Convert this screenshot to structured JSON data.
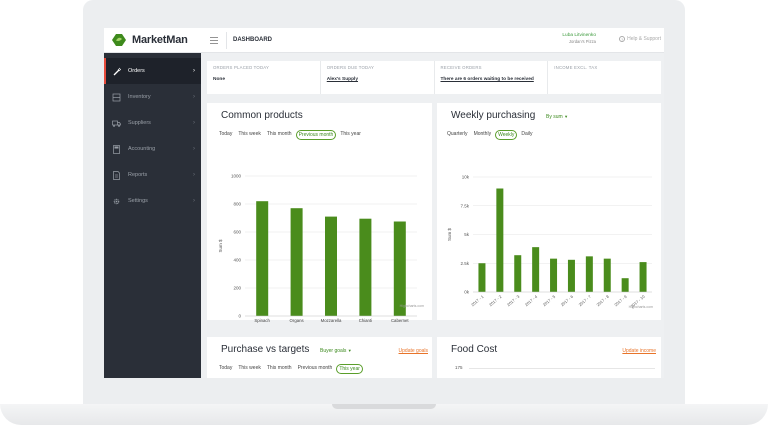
{
  "app": {
    "name": "MarketMan"
  },
  "topbar": {
    "title": "DASHBOARD",
    "user_name": "Luba Litvinenko",
    "restaurant": "Jordan's Pizza",
    "help_label": "Help & Support"
  },
  "sidebar": {
    "items": [
      {
        "label": "Orders",
        "icon": "carrot-icon",
        "active": true
      },
      {
        "label": "Inventory",
        "icon": "inventory-icon",
        "active": false
      },
      {
        "label": "Suppliers",
        "icon": "truck-icon",
        "active": false
      },
      {
        "label": "Accounting",
        "icon": "calculator-icon",
        "active": false
      },
      {
        "label": "Reports",
        "icon": "reports-icon",
        "active": false
      },
      {
        "label": "Settings",
        "icon": "gear-icon",
        "active": false
      }
    ]
  },
  "stats": [
    {
      "header": "ORDERS PLACED TODAY",
      "value": "None"
    },
    {
      "header": "ORDERS DUE TODAY",
      "value": "Alex's Supply"
    },
    {
      "header": "RECEIVE ORDERS",
      "value": "There are 6 orders waiting to be received"
    },
    {
      "header": "INCOME EXCL. TAX",
      "value": ""
    }
  ],
  "common_products": {
    "title": "Common products",
    "tabs": [
      "Today",
      "This week",
      "This month",
      "Previous month",
      "This year"
    ],
    "active_tab": "Previous month",
    "credits": "Highcharts.com"
  },
  "weekly_purchasing": {
    "title": "Weekly purchasing",
    "selector": "By sum",
    "tabs": [
      "Quarterly",
      "Monthly",
      "Weekly",
      "Daily"
    ],
    "active_tab": "Weekly",
    "credits": "Highcharts.com"
  },
  "purchase_targets": {
    "title": "Purchase vs targets",
    "selector": "Buyer goals",
    "update_label": "Update goals",
    "tabs": [
      "Today",
      "This week",
      "This month",
      "Previous month",
      "This year"
    ],
    "active_tab": "This year"
  },
  "food_cost": {
    "title": "Food Cost",
    "update_label": "Update income",
    "first_tick": "175"
  },
  "colors": {
    "accent": "#4a8c1c",
    "sidebar": "#2a2f38",
    "link": "#e8742a",
    "active_marker": "#e74c3c"
  },
  "chart_data": [
    {
      "type": "bar",
      "title": "Common products",
      "categories": [
        "Spinach",
        "Organs Mixed Greens",
        "Mozzarella",
        "Chianti",
        "Cabernet Sauvignon"
      ],
      "values": [
        820,
        770,
        710,
        695,
        675
      ],
      "ylabel": "Sum $",
      "ylim": [
        0,
        1000
      ],
      "yticks": [
        0,
        200,
        400,
        600,
        800,
        1000
      ],
      "grid": true
    },
    {
      "type": "bar",
      "title": "Weekly purchasing",
      "categories": [
        "2017 - 1",
        "2017 - 2",
        "2017 - 3",
        "2017 - 4",
        "2017 - 5",
        "2017 - 6",
        "2017 - 7",
        "2017 - 8",
        "2017 - 9",
        "2017 - 10"
      ],
      "values": [
        2500,
        9000,
        3200,
        3900,
        2900,
        2800,
        3100,
        2900,
        1200,
        2600
      ],
      "ylabel": "Sum $",
      "ylim": [
        0,
        10000
      ],
      "yticks": [
        "0k",
        "2.5k",
        "5k",
        "7.5k",
        "10k"
      ],
      "legend": "Weekly purchasing",
      "legend_position": "bottom",
      "grid": true
    }
  ]
}
